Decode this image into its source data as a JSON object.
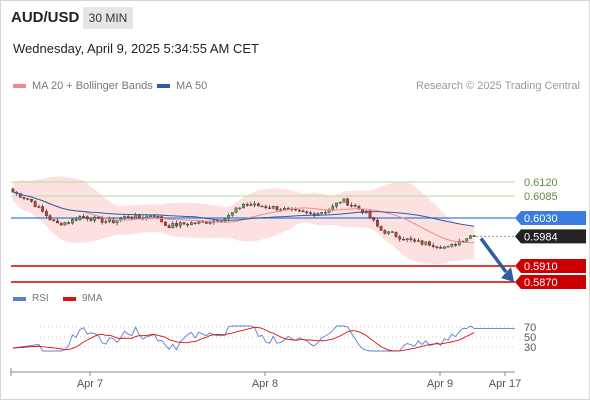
{
  "header": {
    "symbol": "AUD/USD",
    "timeframe": "30 MIN",
    "datetime": "Wednesday, April 9, 2025 5:34:55 AM CET"
  },
  "legend": {
    "ma20_label": "MA 20 + Bollinger Bands",
    "ma50_label": "MA 50",
    "credit": "Research © 2025 Trading Central"
  },
  "colors": {
    "ma20": "#f08a8a",
    "ma50": "#2d5f9e",
    "band": "#fcd9d9",
    "candle_up": "#4caf50",
    "candle_down": "#d32f2f",
    "level_green": "#b8dca0",
    "level_blue": "#3b7ce0",
    "level_red": "#cc0000",
    "last_price_bg": "#222222",
    "arrow": "#2d5f9e",
    "rsi": "#5b7fd0",
    "rsi_ma": "#dd1111"
  },
  "levels": [
    {
      "value": 0.612,
      "label": "0.6120",
      "style": "green-text"
    },
    {
      "value": 0.6085,
      "label": "0.6085",
      "style": "green-text"
    },
    {
      "value": 0.603,
      "label": "0.6030",
      "style": "blue-box"
    },
    {
      "value": 0.5984,
      "label": "0.5984",
      "style": "black-box"
    },
    {
      "value": 0.591,
      "label": "0.5910",
      "style": "red-box"
    },
    {
      "value": 0.587,
      "label": "0.5870",
      "style": "red-box"
    }
  ],
  "price_range": [
    0.585,
    0.635
  ],
  "x_axis": {
    "ticks": [
      "Apr 7",
      "Apr 8",
      "Apr 9",
      "Apr 17"
    ]
  },
  "rsi": {
    "legend_rsi": "RSI",
    "legend_ma": "9MA",
    "levels": [
      70,
      50,
      30
    ],
    "range": [
      0,
      100
    ]
  }
}
